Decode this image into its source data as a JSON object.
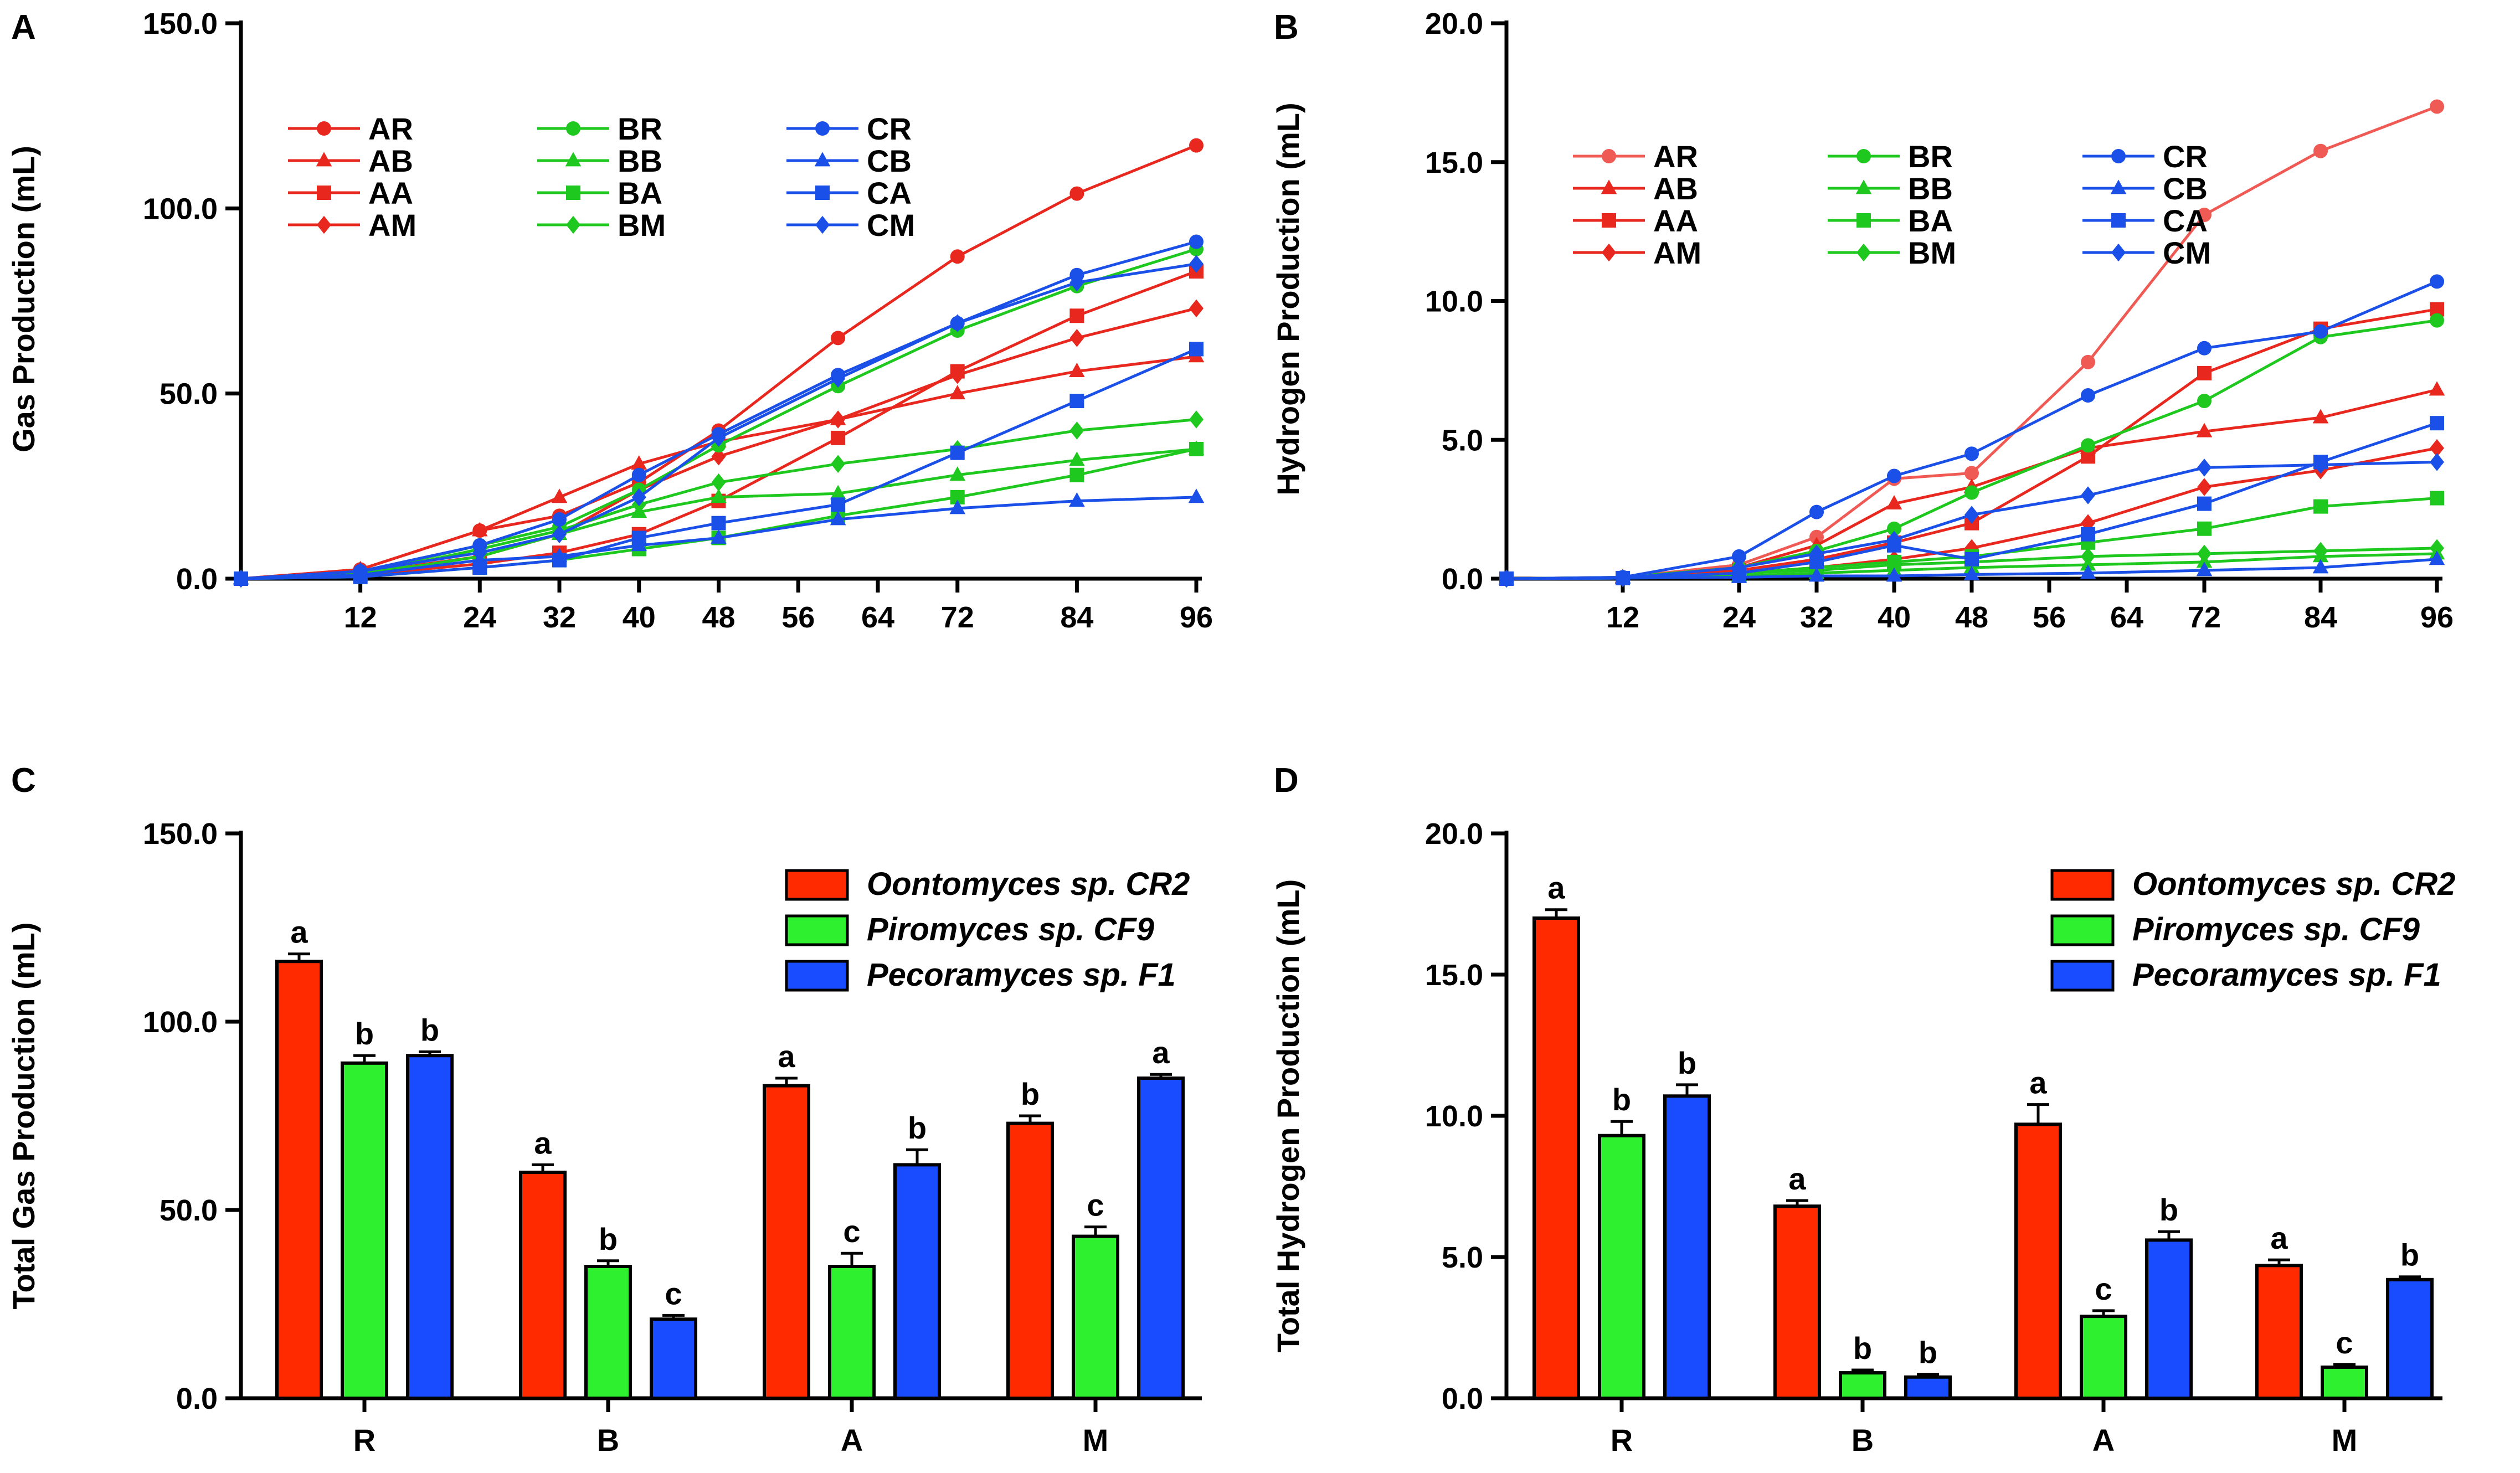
{
  "chart_data": [
    {
      "id": "A",
      "panel_letter": "A",
      "type": "line",
      "ylabel": "Gas Production (mL)",
      "xlabel": "",
      "ylim": [
        0,
        150
      ],
      "yticks": [
        0,
        50,
        100,
        150
      ],
      "ytick_labels": [
        "0.0",
        "50.0",
        "100.0",
        "150.0"
      ],
      "xlim": [
        0,
        96
      ],
      "xticks": [
        12,
        24,
        32,
        40,
        48,
        56,
        64,
        72,
        84,
        96
      ],
      "x": [
        0,
        12,
        24,
        32,
        40,
        48,
        60,
        72,
        84,
        96
      ],
      "series": [
        {
          "name": "AR",
          "color": "#e8281e",
          "marker": "circle",
          "values": [
            0,
            2.5,
            13,
            17,
            26,
            40,
            65,
            87,
            104,
            117
          ]
        },
        {
          "name": "AB",
          "color": "#e8281e",
          "marker": "triangle",
          "values": [
            0,
            2.5,
            13,
            22,
            31,
            37,
            43,
            50,
            56,
            60
          ]
        },
        {
          "name": "AA",
          "color": "#e8281e",
          "marker": "square",
          "values": [
            0,
            1,
            4,
            7,
            12,
            21,
            38,
            56,
            71,
            83
          ]
        },
        {
          "name": "AM",
          "color": "#e8281e",
          "marker": "diamond",
          "values": [
            0,
            1.5,
            6,
            12,
            24,
            33,
            43,
            55,
            65,
            73
          ]
        },
        {
          "name": "BR",
          "color": "#1fc81f",
          "marker": "circle",
          "values": [
            0,
            1.5,
            9,
            14,
            24,
            36,
            52,
            67,
            79,
            89
          ]
        },
        {
          "name": "BB",
          "color": "#1fc81f",
          "marker": "triangle",
          "values": [
            0,
            1,
            6,
            12,
            18,
            22,
            23,
            28,
            32,
            35
          ]
        },
        {
          "name": "BA",
          "color": "#1fc81f",
          "marker": "square",
          "values": [
            0,
            0.5,
            3,
            5,
            8,
            11,
            17,
            22,
            28,
            35
          ]
        },
        {
          "name": "BM",
          "color": "#1fc81f",
          "marker": "diamond",
          "values": [
            0,
            1,
            8,
            13,
            20,
            26,
            31,
            35,
            40,
            43
          ]
        },
        {
          "name": "CR",
          "color": "#1a4fe8",
          "marker": "circle",
          "values": [
            0,
            2,
            9,
            16,
            28,
            39,
            55,
            69,
            82,
            91
          ]
        },
        {
          "name": "CB",
          "color": "#1a4fe8",
          "marker": "triangle",
          "values": [
            0,
            1,
            5,
            6,
            9,
            11,
            16,
            19,
            21,
            22
          ]
        },
        {
          "name": "CA",
          "color": "#1a4fe8",
          "marker": "square",
          "values": [
            0,
            0.5,
            3,
            5,
            11,
            15,
            20,
            34,
            48,
            62
          ]
        },
        {
          "name": "CM",
          "color": "#1a4fe8",
          "marker": "diamond",
          "values": [
            0,
            2,
            7,
            12,
            22,
            38,
            54,
            69,
            80,
            85
          ]
        }
      ]
    },
    {
      "id": "B",
      "panel_letter": "B",
      "type": "line",
      "ylabel": "Hydrogen Production (mL)",
      "xlabel": "",
      "ylim": [
        0,
        20
      ],
      "yticks": [
        0,
        5,
        10,
        15,
        20
      ],
      "ytick_labels": [
        "0.0",
        "5.0",
        "10.0",
        "15.0",
        "20.0"
      ],
      "xlim": [
        0,
        96
      ],
      "xticks": [
        12,
        24,
        32,
        40,
        48,
        56,
        64,
        72,
        84,
        96
      ],
      "x": [
        0,
        12,
        24,
        32,
        40,
        48,
        60,
        72,
        84,
        96
      ],
      "series": [
        {
          "name": "AR",
          "color": "#f05a55",
          "marker": "circle",
          "values": [
            0,
            0.05,
            0.5,
            1.5,
            3.6,
            3.8,
            7.8,
            13.1,
            15.4,
            17.0
          ]
        },
        {
          "name": "AB",
          "color": "#e8281e",
          "marker": "triangle",
          "values": [
            0,
            0.05,
            0.4,
            1.2,
            2.7,
            3.3,
            4.7,
            5.3,
            5.8,
            6.8
          ]
        },
        {
          "name": "AA",
          "color": "#e8281e",
          "marker": "square",
          "values": [
            0,
            0.02,
            0.3,
            0.7,
            1.3,
            2.0,
            4.4,
            7.4,
            9.0,
            9.7
          ]
        },
        {
          "name": "AM",
          "color": "#e8281e",
          "marker": "diamond",
          "values": [
            0,
            0.02,
            0.2,
            0.4,
            0.7,
            1.1,
            2.0,
            3.3,
            3.9,
            4.7
          ]
        },
        {
          "name": "BR",
          "color": "#1fc81f",
          "marker": "circle",
          "values": [
            0,
            0.05,
            0.4,
            1.0,
            1.8,
            3.1,
            4.8,
            6.4,
            8.7,
            9.3
          ]
        },
        {
          "name": "BB",
          "color": "#1fc81f",
          "marker": "triangle",
          "values": [
            0,
            0.02,
            0.1,
            0.2,
            0.3,
            0.4,
            0.5,
            0.6,
            0.8,
            0.9
          ]
        },
        {
          "name": "BA",
          "color": "#1fc81f",
          "marker": "square",
          "values": [
            0,
            0.02,
            0.2,
            0.4,
            0.6,
            0.8,
            1.3,
            1.8,
            2.6,
            2.9
          ]
        },
        {
          "name": "BM",
          "color": "#1fc81f",
          "marker": "diamond",
          "values": [
            0,
            0.02,
            0.2,
            0.3,
            0.5,
            0.6,
            0.8,
            0.9,
            1.0,
            1.1
          ]
        },
        {
          "name": "CR",
          "color": "#1a4fe8",
          "marker": "circle",
          "values": [
            0,
            0.05,
            0.8,
            2.4,
            3.7,
            4.5,
            6.6,
            8.3,
            8.9,
            10.7
          ]
        },
        {
          "name": "CB",
          "color": "#1a4fe8",
          "marker": "triangle",
          "values": [
            0,
            0.02,
            0.05,
            0.1,
            0.1,
            0.15,
            0.2,
            0.3,
            0.4,
            0.7
          ]
        },
        {
          "name": "CA",
          "color": "#1a4fe8",
          "marker": "square",
          "values": [
            0,
            0.02,
            0.2,
            0.6,
            1.2,
            0.7,
            1.6,
            2.7,
            4.2,
            5.6
          ]
        },
        {
          "name": "CM",
          "color": "#1a4fe8",
          "marker": "diamond",
          "values": [
            0,
            0.02,
            0.4,
            0.9,
            1.4,
            2.3,
            3.0,
            4.0,
            4.1,
            4.2
          ]
        }
      ]
    },
    {
      "id": "C",
      "panel_letter": "C",
      "type": "bar",
      "ylabel": "Total Gas Production (mL)",
      "xlabel": "",
      "ylim": [
        0,
        150
      ],
      "yticks": [
        0,
        50,
        100,
        150
      ],
      "ytick_labels": [
        "0.0",
        "50.0",
        "100.0",
        "150.0"
      ],
      "categories": [
        "R",
        "B",
        "A",
        "M"
      ],
      "series": [
        {
          "name": "Oontomyces sp. CR2",
          "color": "#ff2a00",
          "values": [
            116,
            60,
            83,
            73
          ],
          "errors": [
            2,
            2,
            2,
            2
          ],
          "letters": [
            "a",
            "a",
            "a",
            "b"
          ]
        },
        {
          "name": "Piromyces sp. CF9",
          "color": "#2ef02e",
          "values": [
            89,
            35,
            35,
            43
          ],
          "errors": [
            2,
            1.5,
            3.5,
            2.5
          ],
          "letters": [
            "b",
            "b",
            "c",
            "c"
          ]
        },
        {
          "name": "Pecoramyces sp. F1",
          "color": "#1a4cff",
          "values": [
            91,
            21,
            62,
            85
          ],
          "errors": [
            1,
            1,
            4,
            1
          ],
          "letters": [
            "b",
            "c",
            "b",
            "a"
          ]
        }
      ]
    },
    {
      "id": "D",
      "panel_letter": "D",
      "type": "bar",
      "ylabel": "Total Hydrogen Production (mL)",
      "xlabel": "",
      "ylim": [
        0,
        20
      ],
      "yticks": [
        0,
        5,
        10,
        15,
        20
      ],
      "ytick_labels": [
        "0.0",
        "5.0",
        "10.0",
        "15.0",
        "20.0"
      ],
      "categories": [
        "R",
        "B",
        "A",
        "M"
      ],
      "series": [
        {
          "name": "Oontomyces sp. CR2",
          "color": "#ff2a00",
          "values": [
            17.0,
            6.8,
            9.7,
            4.7
          ],
          "errors": [
            0.3,
            0.2,
            0.7,
            0.2
          ],
          "letters": [
            "a",
            "a",
            "a",
            "a"
          ]
        },
        {
          "name": "Piromyces sp. CF9",
          "color": "#2ef02e",
          "values": [
            9.3,
            0.9,
            2.9,
            1.1
          ],
          "errors": [
            0.5,
            0.1,
            0.2,
            0.1
          ],
          "letters": [
            "b",
            "b",
            "c",
            "c"
          ]
        },
        {
          "name": "Pecoramyces sp. F1",
          "color": "#1a4cff",
          "values": [
            10.7,
            0.75,
            5.6,
            4.2
          ],
          "errors": [
            0.4,
            0.1,
            0.3,
            0.1
          ],
          "letters": [
            "b",
            "b",
            "b",
            "b"
          ]
        }
      ]
    }
  ]
}
